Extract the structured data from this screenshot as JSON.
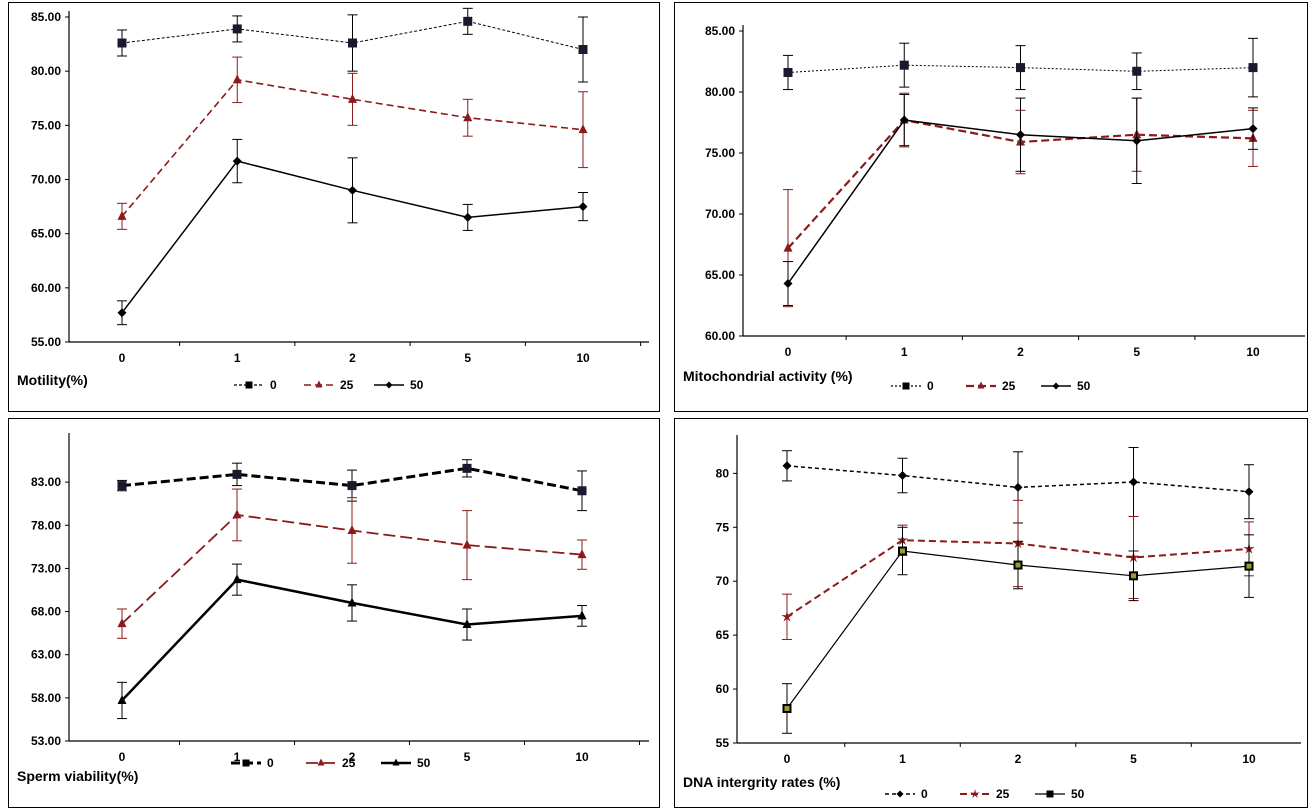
{
  "chart_data": [
    {
      "type": "line",
      "xlabel": "Motility(%)",
      "categories": [
        "0",
        "1",
        "2",
        "5",
        "10"
      ],
      "ylim": [
        55,
        85
      ],
      "yticks": [
        "55.00",
        "60.00",
        "65.00",
        "70.00",
        "75.00",
        "80.00",
        "85.00"
      ],
      "series": [
        {
          "name": "0",
          "values": [
            82.6,
            83.9,
            82.6,
            84.6,
            82.0
          ],
          "errors": [
            1.2,
            1.2,
            2.6,
            1.2,
            3.0
          ],
          "color": "#000000",
          "marker": "square",
          "dash": "3,2",
          "width": 1
        },
        {
          "name": "25",
          "values": [
            66.6,
            79.2,
            77.4,
            75.7,
            74.6
          ],
          "errors": [
            1.2,
            2.1,
            2.4,
            1.7,
            3.5
          ],
          "color": "#8b1a1a",
          "marker": "triangle",
          "dash": "7,4",
          "width": 1.6
        },
        {
          "name": "50",
          "values": [
            57.7,
            71.7,
            69.0,
            66.5,
            67.5
          ],
          "errors": [
            1.1,
            2.0,
            3.0,
            1.2,
            1.3
          ],
          "color": "#000000",
          "marker": "diamond",
          "dash": "",
          "width": 1.5
        }
      ]
    },
    {
      "type": "line",
      "xlabel": "Mitochondrial activity (%)",
      "categories": [
        "0",
        "1",
        "2",
        "5",
        "10"
      ],
      "ylim": [
        60,
        85
      ],
      "yticks": [
        "60.00",
        "65.00",
        "70.00",
        "75.00",
        "80.00",
        "85.00"
      ],
      "series": [
        {
          "name": "0",
          "values": [
            81.6,
            82.2,
            82.0,
            81.7,
            82.0
          ],
          "errors": [
            1.4,
            1.8,
            1.8,
            1.5,
            2.4
          ],
          "color": "#000000",
          "marker": "square",
          "dash": "2,2",
          "width": 1
        },
        {
          "name": "25",
          "values": [
            67.2,
            77.7,
            75.9,
            76.5,
            76.2
          ],
          "errors": [
            4.8,
            2.2,
            2.6,
            3.0,
            2.3
          ],
          "color": "#8b1a1a",
          "marker": "triangle",
          "dash": "8,4",
          "width": 2.2
        },
        {
          "name": "50",
          "values": [
            64.3,
            77.7,
            76.5,
            76.0,
            77.0
          ],
          "errors": [
            1.8,
            2.1,
            3.0,
            3.5,
            1.7
          ],
          "color": "#000000",
          "marker": "diamond",
          "dash": "",
          "width": 1.5
        }
      ]
    },
    {
      "type": "line",
      "xlabel": "Sperm viability(%)",
      "categories": [
        "0",
        "1",
        "2",
        "5",
        "10"
      ],
      "ylim": [
        53,
        88
      ],
      "yticks": [
        "53.00",
        "58.00",
        "63.00",
        "68.00",
        "73.00",
        "78.00",
        "83.00"
      ],
      "series": [
        {
          "name": "0",
          "values": [
            82.6,
            83.9,
            82.6,
            84.6,
            82.0
          ],
          "errors": [
            0.6,
            1.3,
            1.8,
            1.0,
            2.3
          ],
          "color": "#000000",
          "marker": "square",
          "dash": "9,4",
          "width": 3
        },
        {
          "name": "25",
          "values": [
            66.6,
            79.2,
            77.4,
            75.7,
            74.6
          ],
          "errors": [
            1.7,
            3.0,
            3.8,
            4.0,
            1.7
          ],
          "color": "#8b1a1a",
          "marker": "triangle",
          "dash": "12,5",
          "width": 1.8
        },
        {
          "name": "50",
          "values": [
            57.7,
            71.7,
            69.0,
            66.5,
            67.5
          ],
          "errors": [
            2.1,
            1.8,
            2.1,
            1.8,
            1.2
          ],
          "color": "#000000",
          "marker": "triangle",
          "dash": "",
          "width": 2.5
        }
      ]
    },
    {
      "type": "line",
      "xlabel": "DNA intergrity rates (%)",
      "categories": [
        "0",
        "1",
        "2",
        "5",
        "10"
      ],
      "ylim": [
        55,
        83
      ],
      "yticks": [
        "55",
        "60",
        "65",
        "70",
        "75",
        "80"
      ],
      "series": [
        {
          "name": "0",
          "values": [
            80.7,
            79.8,
            78.7,
            79.2,
            78.3
          ],
          "errors": [
            1.4,
            1.6,
            3.3,
            3.2,
            2.5
          ],
          "color": "#000000",
          "marker": "diamond",
          "dash": "4,3",
          "width": 1.5
        },
        {
          "name": "25",
          "values": [
            66.7,
            73.8,
            73.5,
            72.2,
            73.0
          ],
          "errors": [
            2.1,
            1.4,
            4.0,
            3.8,
            2.5
          ],
          "color": "#8b1a1a",
          "marker": "star",
          "dash": "7,4",
          "width": 2
        },
        {
          "name": "50",
          "values": [
            58.2,
            72.8,
            71.5,
            70.5,
            71.4
          ],
          "errors": [
            2.3,
            2.2,
            2.2,
            2.3,
            2.9
          ],
          "color": "#000000",
          "marker": "square",
          "dash": "",
          "width": 1.2
        }
      ]
    }
  ]
}
